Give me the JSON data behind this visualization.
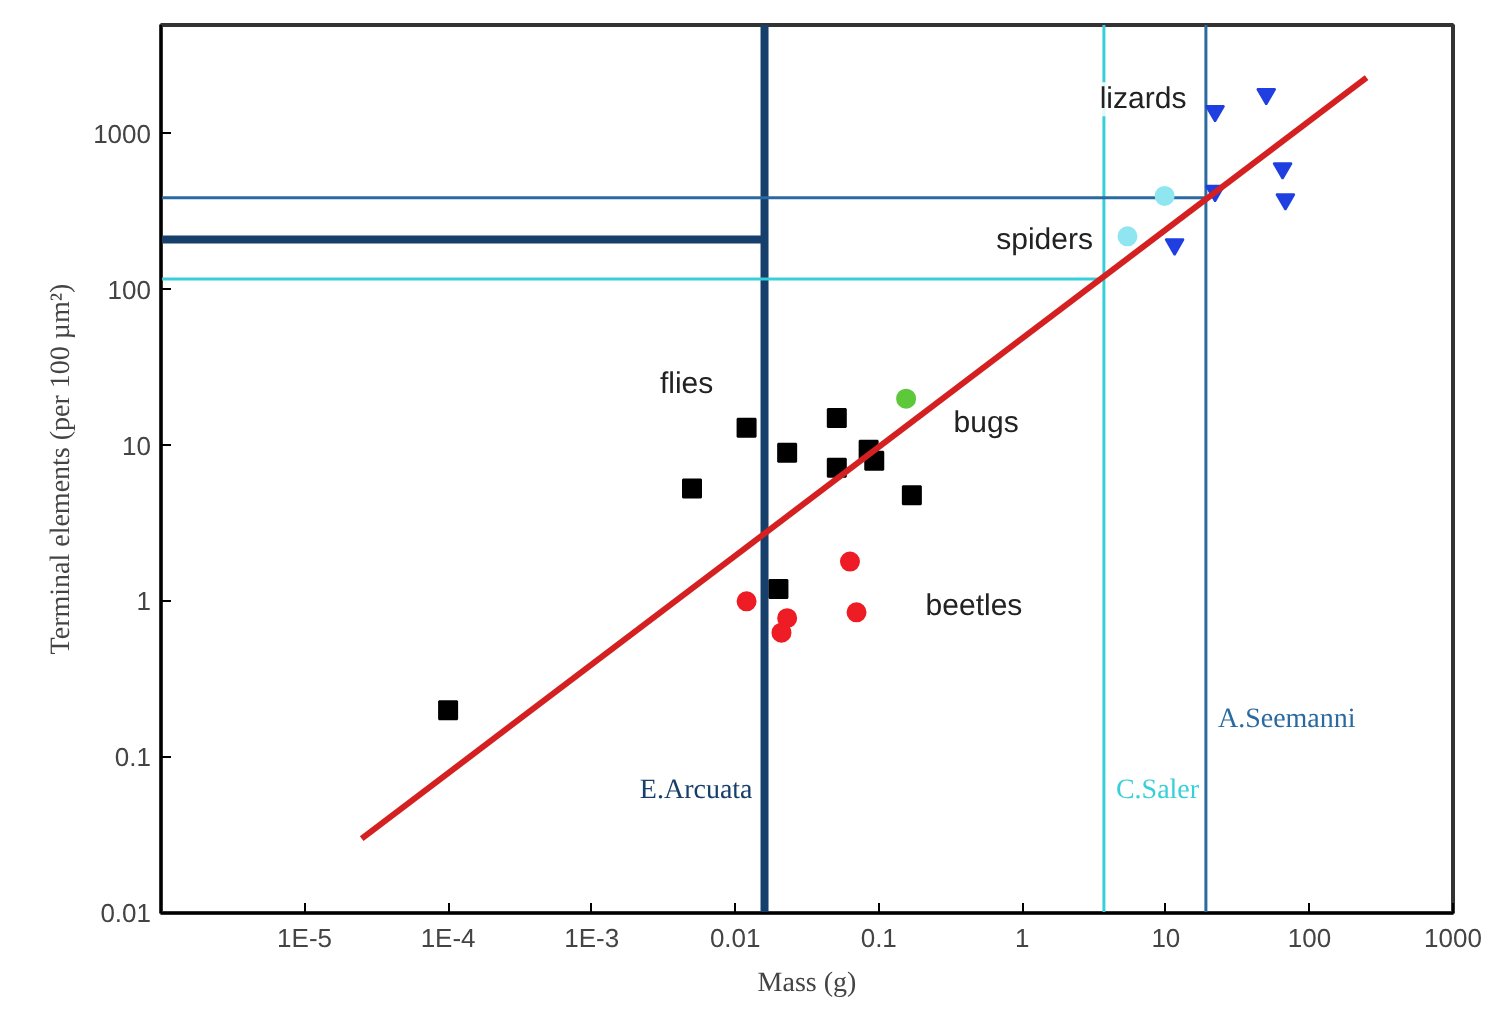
{
  "chart_data": {
    "type": "scatter",
    "xlabel": "Mass (g)",
    "ylabel": "Terminal elements (per 100 µm²)",
    "log": "xy",
    "grid": false,
    "xlim": [
      1e-06,
      1000
    ],
    "ylim": [
      0.01,
      5000
    ],
    "xticks": [
      {
        "value": 1e-05,
        "label": "1E-5"
      },
      {
        "value": 0.0001,
        "label": "1E-4"
      },
      {
        "value": 0.001,
        "label": "1E-3"
      },
      0.01,
      0.1,
      1,
      10,
      100,
      1000
    ],
    "yticks": [
      0.01,
      0.1,
      1,
      10,
      100,
      1000
    ],
    "series": [
      {
        "name": "flies",
        "marker": "square",
        "color": "#000000",
        "x": [
          0.0001,
          0.005,
          0.012,
          0.023,
          0.051,
          0.051,
          0.085,
          0.093,
          0.17,
          0.02
        ],
        "values": [
          0.2,
          5.3,
          13,
          9,
          15,
          7.2,
          9.4,
          8,
          4.8,
          1.2
        ]
      },
      {
        "name": "beetles",
        "marker": "circle",
        "color": "#ee1c24",
        "x": [
          0.012,
          0.023,
          0.021,
          0.063,
          0.07
        ],
        "values": [
          1.0,
          0.78,
          0.63,
          1.8,
          0.85
        ]
      },
      {
        "name": "bugs",
        "marker": "circle",
        "color": "#5cc83a",
        "x": [
          0.155
        ],
        "values": [
          20
        ]
      },
      {
        "name": "spiders",
        "marker": "circle",
        "color": "#8fe6f0",
        "x": [
          9.8,
          5.4
        ],
        "values": [
          400,
          220
        ]
      },
      {
        "name": "lizards",
        "marker": "triangle",
        "color": "#1f3fe0",
        "x": [
          22,
          50,
          65,
          68,
          11.5,
          22
        ],
        "values": [
          1400,
          1800,
          600,
          380,
          195,
          430
        ]
      },
      {
        "type": "line",
        "marker": "none",
        "line_style": "solid",
        "color": "#d42020",
        "x": [
          2.5e-05,
          250
        ],
        "values": [
          0.03,
          2300
        ]
      }
    ],
    "ref_lines": [
      {
        "axis": "x",
        "value": 0.016,
        "label": "E.Arcuata",
        "color": "#173f6b"
      },
      {
        "axis": "x",
        "value": 3.7,
        "label": "C.Saler",
        "color": "#38d0d8"
      },
      {
        "axis": "x",
        "value": 19,
        "label": "A.Seemanni",
        "color": "#2a6aa0"
      },
      {
        "axis": "y",
        "value": 210,
        "label": null,
        "color": "#173f6b"
      },
      {
        "axis": "y",
        "value": 117,
        "label": null,
        "color": "#38d0d8"
      },
      {
        "axis": "y",
        "value": 390,
        "label": null,
        "color": "#2a6aa0"
      }
    ]
  }
}
